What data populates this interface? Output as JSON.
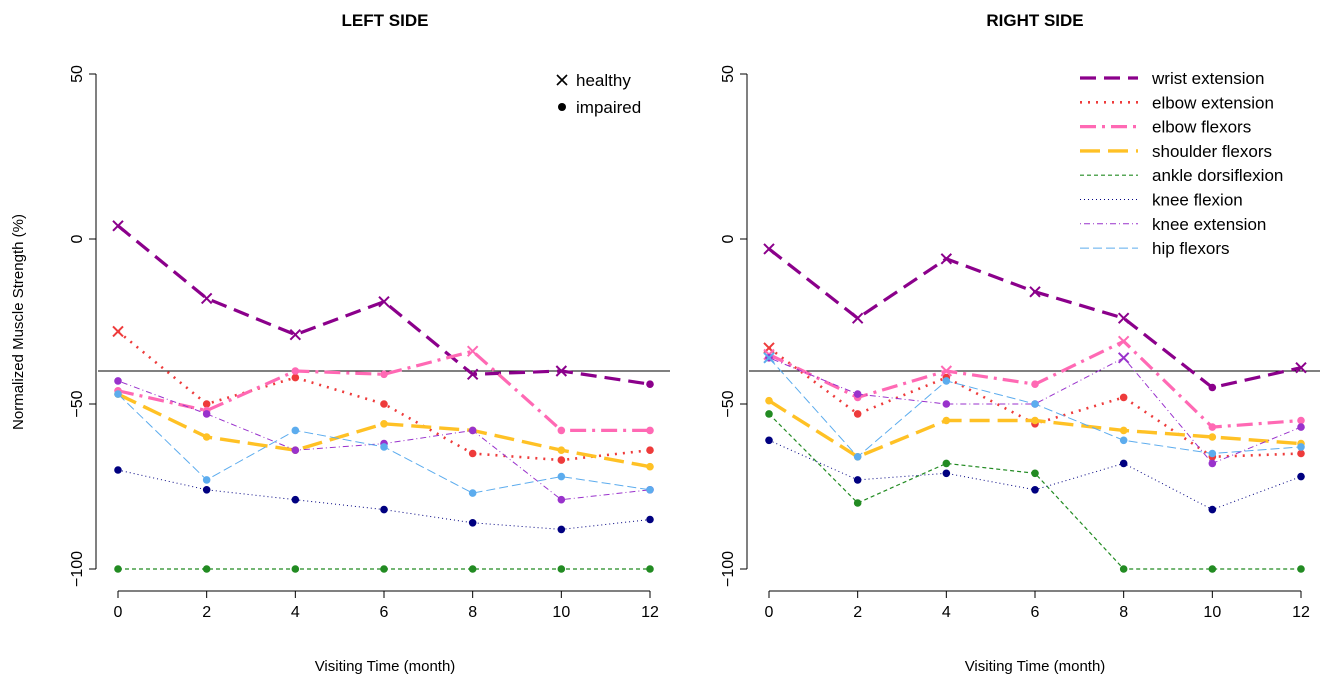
{
  "chart_data": [
    {
      "type": "line",
      "title": "LEFT SIDE",
      "xlabel": "Visiting Time (month)",
      "ylabel": "Normalized Muscle Strength (%)",
      "x": [
        0,
        2,
        4,
        6,
        8,
        10,
        12
      ],
      "xticks": [
        0,
        2,
        4,
        6,
        8,
        10,
        12
      ],
      "yticks": [
        -100,
        -50,
        0,
        50
      ],
      "xlim": [
        0,
        12
      ],
      "ylim": [
        -100,
        50
      ],
      "reference_line_y": -40,
      "grid": false,
      "marker_legend": [
        {
          "symbol": "×",
          "label": "healthy"
        },
        {
          "symbol": "●",
          "label": "impaired"
        }
      ],
      "series": [
        {
          "name": "wrist extension",
          "color": "#8B008B",
          "dash": "long",
          "values": [
            4,
            -18,
            -29,
            -19,
            -41,
            -40,
            -44
          ],
          "markers": [
            "healthy",
            "healthy",
            "healthy",
            "healthy",
            "healthy",
            "healthy",
            "impaired"
          ]
        },
        {
          "name": "elbow extension",
          "color": "#EE3B3B",
          "dash": "dotted",
          "values": [
            -28,
            -50,
            -42,
            -50,
            -65,
            -67,
            -64
          ],
          "markers": [
            "healthy",
            "impaired",
            "impaired",
            "impaired",
            "impaired",
            "impaired",
            "impaired"
          ]
        },
        {
          "name": "elbow flexors",
          "color": "#FF69B4",
          "dash": "dashdot",
          "values": [
            -46,
            -52,
            -40,
            -41,
            -34,
            -58,
            -58
          ],
          "markers": [
            "impaired",
            "impaired",
            "impaired",
            "impaired",
            "healthy",
            "impaired",
            "impaired"
          ]
        },
        {
          "name": "shoulder flexors",
          "color": "#FFC125",
          "dash": "longdash",
          "values": [
            -47,
            -60,
            -64,
            -56,
            -58,
            -64,
            -69
          ],
          "markers": [
            "impaired",
            "impaired",
            "impaired",
            "impaired",
            "impaired",
            "impaired",
            "impaired"
          ]
        },
        {
          "name": "ankle dorsiflexion",
          "color": "#228B22",
          "dash": "short",
          "values": [
            -100,
            -100,
            -100,
            -100,
            -100,
            -100,
            -100
          ],
          "markers": [
            "impaired",
            "impaired",
            "impaired",
            "impaired",
            "impaired",
            "impaired",
            "impaired"
          ]
        },
        {
          "name": "knee flexion",
          "color": "#000080",
          "dash": "fine-dotted",
          "values": [
            -70,
            -76,
            -79,
            -82,
            -86,
            -88,
            -85
          ],
          "markers": [
            "impaired",
            "impaired",
            "impaired",
            "impaired",
            "impaired",
            "impaired",
            "impaired"
          ]
        },
        {
          "name": "knee extension",
          "color": "#9932CC",
          "dash": "dot-dash",
          "values": [
            -43,
            -53,
            -64,
            -62,
            -58,
            -79,
            -76
          ],
          "markers": [
            "impaired",
            "impaired",
            "impaired",
            "impaired",
            "impaired",
            "impaired",
            "impaired"
          ]
        },
        {
          "name": "hip flexors",
          "color": "#5CACEE",
          "dash": "medium",
          "values": [
            -47,
            -73,
            -58,
            -63,
            -77,
            -72,
            -76
          ],
          "markers": [
            "impaired",
            "impaired",
            "impaired",
            "impaired",
            "impaired",
            "impaired",
            "impaired"
          ]
        }
      ]
    },
    {
      "type": "line",
      "title": "RIGHT SIDE",
      "xlabel": "Visiting Time (month)",
      "ylabel": "",
      "x": [
        0,
        2,
        4,
        6,
        8,
        10,
        12
      ],
      "xticks": [
        0,
        2,
        4,
        6,
        8,
        10,
        12
      ],
      "yticks": [
        -100,
        -50,
        0,
        50
      ],
      "xlim": [
        0,
        12
      ],
      "ylim": [
        -100,
        50
      ],
      "reference_line_y": -40,
      "grid": false,
      "legend_position": "top-right",
      "series": [
        {
          "name": "wrist extension",
          "color": "#8B008B",
          "dash": "long",
          "values": [
            -3,
            -24,
            -6,
            -16,
            -24,
            -45,
            -39
          ],
          "markers": [
            "healthy",
            "healthy",
            "healthy",
            "healthy",
            "healthy",
            "impaired",
            "healthy"
          ]
        },
        {
          "name": "elbow extension",
          "color": "#EE3B3B",
          "dash": "dotted",
          "values": [
            -33,
            -53,
            -42,
            -56,
            -48,
            -66,
            -65
          ],
          "markers": [
            "healthy",
            "impaired",
            "impaired",
            "impaired",
            "impaired",
            "impaired",
            "impaired"
          ]
        },
        {
          "name": "elbow flexors",
          "color": "#FF69B4",
          "dash": "dashdot",
          "values": [
            -35,
            -48,
            -40,
            -44,
            -31,
            -57,
            -55
          ],
          "markers": [
            "healthy",
            "impaired",
            "healthy",
            "impaired",
            "healthy",
            "impaired",
            "impaired"
          ]
        },
        {
          "name": "shoulder flexors",
          "color": "#FFC125",
          "dash": "longdash",
          "values": [
            -49,
            -66,
            -55,
            -55,
            -58,
            -60,
            -62
          ],
          "markers": [
            "impaired",
            "impaired",
            "impaired",
            "impaired",
            "impaired",
            "impaired",
            "impaired"
          ]
        },
        {
          "name": "ankle dorsiflexion",
          "color": "#228B22",
          "dash": "short",
          "values": [
            -53,
            -80,
            -68,
            -71,
            -100,
            -100,
            -100
          ],
          "markers": [
            "impaired",
            "impaired",
            "impaired",
            "impaired",
            "impaired",
            "impaired",
            "impaired"
          ]
        },
        {
          "name": "knee flexion",
          "color": "#000080",
          "dash": "fine-dotted",
          "values": [
            -61,
            -73,
            -71,
            -76,
            -68,
            -82,
            -72
          ],
          "markers": [
            "impaired",
            "impaired",
            "impaired",
            "impaired",
            "impaired",
            "impaired",
            "impaired"
          ]
        },
        {
          "name": "knee extension",
          "color": "#9932CC",
          "dash": "dot-dash",
          "values": [
            -36,
            -47,
            -50,
            -50,
            -36,
            -68,
            -57
          ],
          "markers": [
            "impaired",
            "impaired",
            "impaired",
            "impaired",
            "healthy",
            "impaired",
            "impaired"
          ]
        },
        {
          "name": "hip flexors",
          "color": "#5CACEE",
          "dash": "medium",
          "values": [
            -36,
            -66,
            -43,
            -50,
            -61,
            -65,
            -63
          ],
          "markers": [
            "healthy",
            "impaired",
            "impaired",
            "impaired",
            "impaired",
            "impaired",
            "impaired"
          ]
        }
      ]
    }
  ]
}
